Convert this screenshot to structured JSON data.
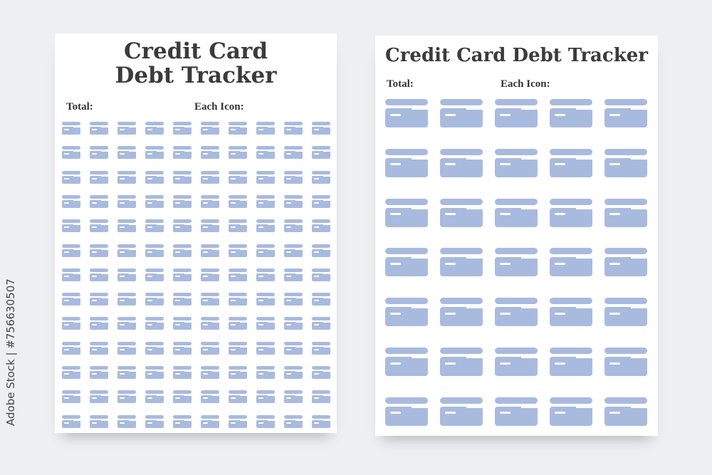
{
  "pages": [
    {
      "title_line1": "Credit Card",
      "title_line2": "Debt Tracker",
      "total_label": "Total:",
      "each_icon_label": "Each Icon:",
      "rows": 13,
      "cols": 10
    },
    {
      "title": "Credit Card Debt Tracker",
      "total_label": "Total:",
      "each_icon_label": "Each Icon:",
      "rows": 7,
      "cols": 5
    }
  ],
  "icon": "credit-card-icon",
  "icon_color": "#a9badf",
  "watermark": "Adobe Stock | #756630507"
}
